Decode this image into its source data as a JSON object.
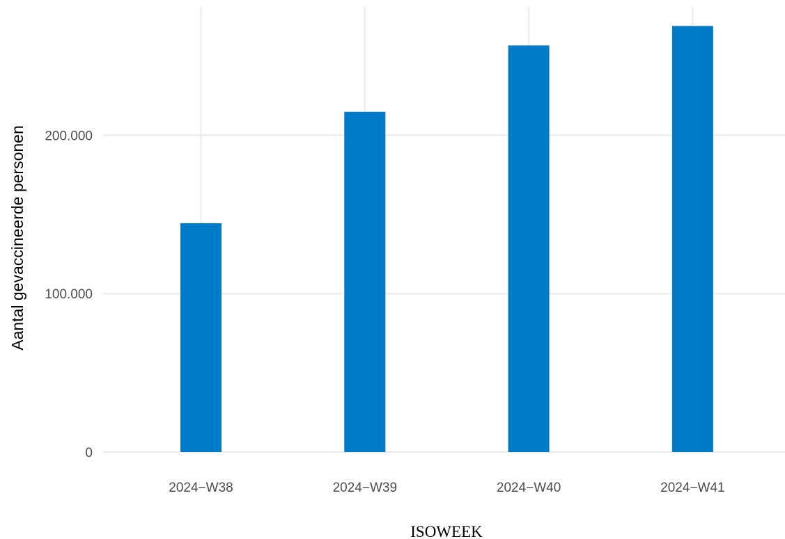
{
  "chart_data": {
    "type": "bar",
    "categories": [
      "2024−W38",
      "2024−W39",
      "2024−W40",
      "2024−W41"
    ],
    "values": [
      144500,
      214800,
      256700,
      269000
    ],
    "xlabel": "ISOWEEK",
    "ylabel": "Aantal gevaccineerde personen",
    "ylim": [
      0,
      281000
    ],
    "yticks": [
      0,
      100000,
      200000
    ],
    "ytick_labels": [
      "0",
      "100.000",
      "200.000"
    ],
    "grid": true,
    "bar_color": "#007BC7",
    "grid_color": "#EBEBEB"
  }
}
